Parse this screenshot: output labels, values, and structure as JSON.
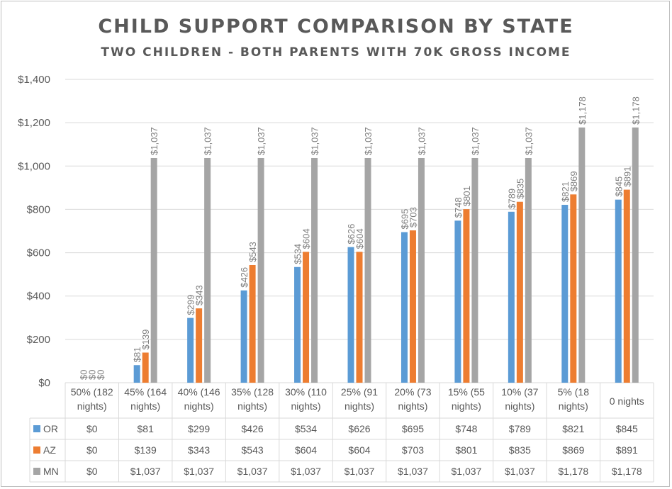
{
  "chart_data": {
    "type": "bar",
    "title": "CHILD SUPPORT COMPARISON BY STATE",
    "subtitle": "TWO CHILDREN - BOTH PARENTS WITH 70K GROSS INCOME",
    "categories": [
      [
        "50% (182",
        "nights)"
      ],
      [
        "45% (164",
        "nights)"
      ],
      [
        "40% (146",
        "nights)"
      ],
      [
        "35% (128",
        "nights)"
      ],
      [
        "30% (110",
        "nights)"
      ],
      [
        "25% (91",
        "nights)"
      ],
      [
        "20% (73",
        "nights)"
      ],
      [
        "15% (55",
        "nights)"
      ],
      [
        "10% (37",
        "nights)"
      ],
      [
        "5% (18",
        "nights)"
      ],
      [
        "0 nights"
      ]
    ],
    "series": [
      {
        "name": "OR",
        "color": "#5b9bd5",
        "values": [
          0,
          81,
          299,
          426,
          534,
          626,
          695,
          748,
          789,
          821,
          845
        ],
        "labels": [
          "$0",
          "$81",
          "$299",
          "$426",
          "$534",
          "$626",
          "$695",
          "$748",
          "$789",
          "$821",
          "$845"
        ]
      },
      {
        "name": "AZ",
        "color": "#ed7d31",
        "values": [
          0,
          139,
          343,
          543,
          604,
          604,
          703,
          801,
          835,
          869,
          891
        ],
        "labels": [
          "$0",
          "$139",
          "$343",
          "$543",
          "$604",
          "$604",
          "$703",
          "$801",
          "$835",
          "$869",
          "$891"
        ]
      },
      {
        "name": "MN",
        "color": "#a5a5a5",
        "values": [
          0,
          1037,
          1037,
          1037,
          1037,
          1037,
          1037,
          1037,
          1037,
          1178,
          1178
        ],
        "labels": [
          "$0",
          "$1,037",
          "$1,037",
          "$1,037",
          "$1,037",
          "$1,037",
          "$1,037",
          "$1,037",
          "$1,037",
          "$1,178",
          "$1,178"
        ]
      }
    ],
    "ylim": [
      0,
      1400
    ],
    "yticks": [
      0,
      200,
      400,
      600,
      800,
      1000,
      1200,
      1400
    ],
    "ytick_labels": [
      "$0",
      "$200",
      "$400",
      "$600",
      "$800",
      "$1,000",
      "$1,200",
      "$1,400"
    ],
    "grid": true,
    "data_table": true
  }
}
